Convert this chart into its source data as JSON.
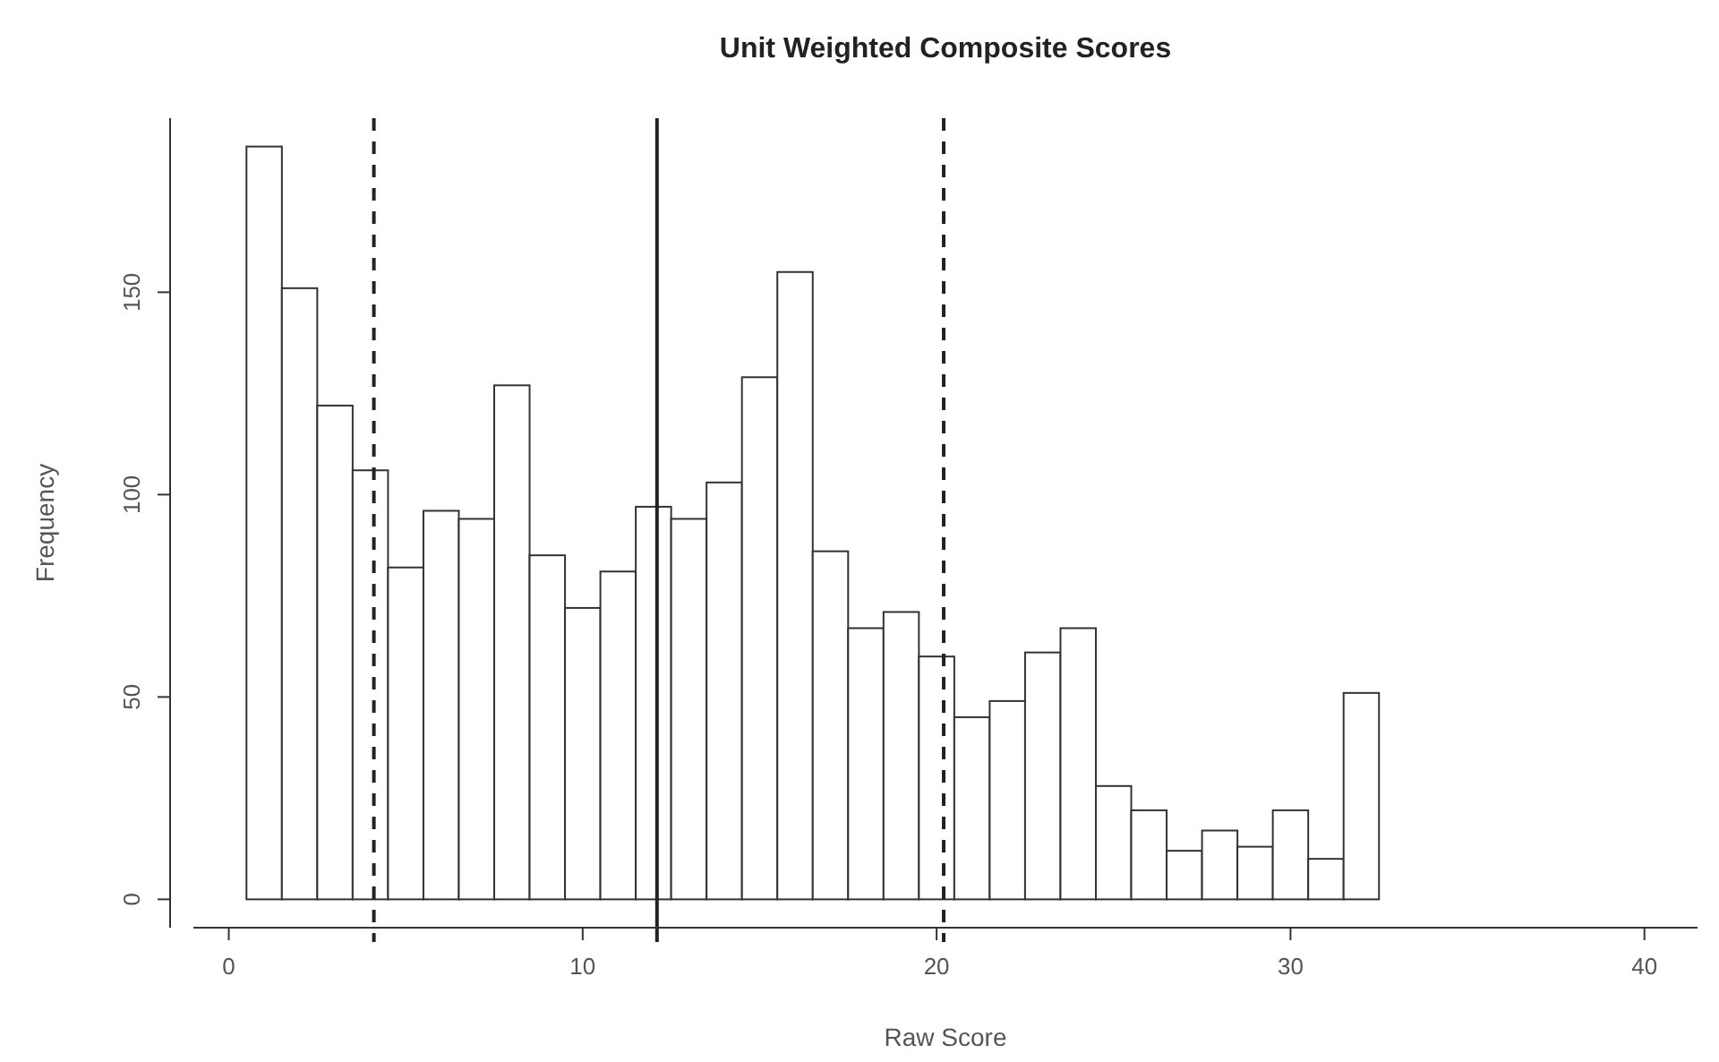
{
  "chart_data": {
    "type": "histogram",
    "title": "Unit Weighted Composite Scores",
    "xlabel": "Raw Score",
    "ylabel": "Frequency",
    "bins": [
      0.5,
      1.5,
      2.5,
      3.5,
      4.5,
      5.5,
      6.5,
      7.5,
      8.5,
      9.5,
      10.5,
      11.5,
      12.5,
      13.5,
      14.5,
      15.5,
      16.5,
      17.5,
      18.5,
      19.5,
      20.5,
      21.5,
      22.5,
      23.5,
      24.5,
      25.5,
      26.5,
      27.5,
      28.5,
      29.5,
      30.5,
      31.5,
      32.5,
      33.5,
      34.5,
      35.5,
      36.5,
      37.5,
      38.5,
      39.5,
      40.5
    ],
    "values": [
      186,
      151,
      122,
      106,
      82,
      96,
      94,
      127,
      85,
      72,
      81,
      97,
      94,
      103,
      129,
      155,
      86,
      67,
      71,
      60,
      45,
      49,
      61,
      67,
      28,
      22,
      12,
      17,
      13,
      22,
      10,
      51,
      0,
      0,
      0,
      0,
      0,
      0,
      0,
      0
    ],
    "color": "#ffffff",
    "xlim": [
      -1,
      41.5
    ],
    "xticks": [
      0,
      10,
      20,
      30,
      40
    ],
    "ylim": [
      -7,
      193
    ],
    "yticks": [
      0,
      50,
      100,
      150
    ],
    "ref_lines": [
      {
        "axis": "x",
        "value": 4.1,
        "line_style": "dashed"
      },
      {
        "axis": "x",
        "value": 12.1,
        "line_style": "solid"
      },
      {
        "axis": "x",
        "value": 20.2,
        "line_style": "dashed"
      }
    ],
    "grid": false
  }
}
